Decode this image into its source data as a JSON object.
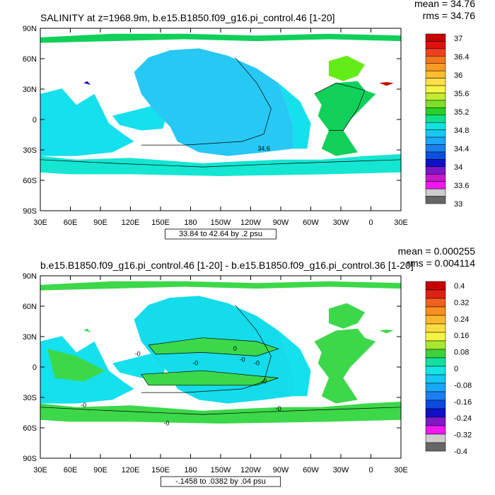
{
  "panels": [
    {
      "title": "SALINITY at z=1968.9m, b.e15.B1850.f09_g16.pi_control.46 [1-20]",
      "mean": "mean = 34.76",
      "rms": "rms = 34.76",
      "info": "33.84 to 42.64 by .2 psu",
      "y_ticks": [
        "90N",
        "60N",
        "30N",
        "0",
        "30S",
        "60S",
        "90S"
      ],
      "x_ticks": [
        "30E",
        "60E",
        "90E",
        "120E",
        "150E",
        "180",
        "150W",
        "120W",
        "90W",
        "60W",
        "30W",
        "0",
        "30E"
      ],
      "colorbar": {
        "labels": [
          "37",
          "36.4",
          "36",
          "35.6",
          "35.2",
          "34.8",
          "34.4",
          "34",
          "33.6",
          "33"
        ],
        "colors": [
          "#c80000",
          "#e01010",
          "#ee4020",
          "#f5781e",
          "#f89a28",
          "#fbbd2e",
          "#fde048",
          "#f4f444",
          "#c0ec30",
          "#7ede28",
          "#28d028",
          "#10e08c",
          "#10e4e0",
          "#14c8f4",
          "#1aa8f8",
          "#1a80f0",
          "#0a50e0",
          "#1010c8",
          "#7a18c8",
          "#c818c8",
          "#f018f0",
          "#cccccc",
          "#666666"
        ]
      },
      "contour_labels": [
        "34.6"
      ],
      "field": {
        "ocean": "#14e0ee",
        "pacific": "#28c8f4",
        "atlantic": "#10d05a",
        "labrador": "#64ec18",
        "medit": "#c00000",
        "red_sea": "#1010c8",
        "southern": "#14e6d2"
      }
    },
    {
      "title": "b.e15.B1850.f09_g16.pi_control.46 [1-20] - b.e15.B1850.f09_g16.pi_control.36 [1-20]",
      "mean": "mean = 0.000255",
      "rms": "rms = 0.004114",
      "info": "-.1458 to .0382 by .04 psu",
      "y_ticks": [
        "90N",
        "60N",
        "30N",
        "0",
        "30S",
        "60S",
        "90S"
      ],
      "x_ticks": [
        "30E",
        "60E",
        "90E",
        "120E",
        "150E",
        "180",
        "150W",
        "120W",
        "90W",
        "60W",
        "30W",
        "0",
        "30E"
      ],
      "colorbar": {
        "labels": [
          "0.4",
          "0.32",
          "0.24",
          "0.16",
          "0.08",
          "0",
          "-0.08",
          "-0.16",
          "-0.24",
          "-0.32",
          "-0.4"
        ],
        "colors": [
          "#c80000",
          "#e02010",
          "#f06020",
          "#f8901e",
          "#fab82c",
          "#fcdc40",
          "#f4f444",
          "#a8e830",
          "#3cd238",
          "#10e0a0",
          "#14e6e6",
          "#14c8f4",
          "#18a8f8",
          "#1a7ef0",
          "#0a4ae0",
          "#1010c8",
          "#8018c8",
          "#f018f0",
          "#cccccc",
          "#666666"
        ]
      },
      "contour_labels": [
        "-0",
        "0",
        "-0",
        "-0",
        "-0",
        "-0",
        "-0",
        "-0",
        "-0"
      ],
      "field": {
        "ocean": "#14e0ee",
        "pacific": "#14dcea",
        "atlantic": "#3cd84a",
        "labrador": "#3cd84a",
        "medit": "#3cd84a",
        "red_sea": "#3cd84a",
        "southern": "#3cd84a"
      }
    }
  ]
}
